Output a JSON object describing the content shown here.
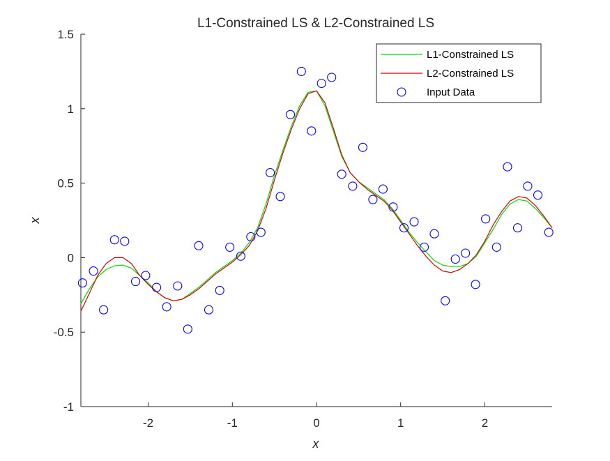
{
  "chart_data": {
    "type": "line",
    "title": "L1-Constrained LS & L2-Constrained LS",
    "xlabel": "x",
    "ylabel": "x",
    "xlim": [
      -2.8,
      2.8
    ],
    "ylim": [
      -1,
      1.5
    ],
    "xticks": [
      -2,
      -1,
      0,
      1,
      2
    ],
    "xtick_labels": [
      "-2",
      "-1",
      "0",
      "1",
      "2"
    ],
    "yticks": [
      -1,
      -0.5,
      0,
      0.5,
      1,
      1.5
    ],
    "ytick_labels": [
      "-1",
      "-0.5",
      "0",
      "0.5",
      "1",
      "1.5"
    ],
    "grid": false,
    "legend_position": "top-right",
    "series": [
      {
        "name": "L1-Constrained LS",
        "kind": "line",
        "color": "#00dd00",
        "x": [
          -2.8,
          -2.7,
          -2.6,
          -2.5,
          -2.4,
          -2.3,
          -2.2,
          -2.1,
          -2.0,
          -1.9,
          -1.8,
          -1.7,
          -1.6,
          -1.5,
          -1.4,
          -1.3,
          -1.2,
          -1.1,
          -1.0,
          -0.9,
          -0.8,
          -0.7,
          -0.6,
          -0.5,
          -0.4,
          -0.3,
          -0.2,
          -0.1,
          0.0,
          0.1,
          0.2,
          0.3,
          0.4,
          0.5,
          0.6,
          0.7,
          0.8,
          0.9,
          1.0,
          1.1,
          1.2,
          1.3,
          1.4,
          1.5,
          1.6,
          1.7,
          1.8,
          1.9,
          2.0,
          2.1,
          2.2,
          2.3,
          2.4,
          2.5,
          2.6,
          2.7,
          2.8
        ],
        "y": [
          -0.31,
          -0.21,
          -0.13,
          -0.08,
          -0.055,
          -0.05,
          -0.07,
          -0.12,
          -0.17,
          -0.23,
          -0.27,
          -0.29,
          -0.28,
          -0.24,
          -0.2,
          -0.15,
          -0.1,
          -0.06,
          -0.02,
          0.03,
          0.1,
          0.2,
          0.36,
          0.55,
          0.72,
          0.88,
          1.02,
          1.11,
          1.12,
          1.02,
          0.85,
          0.68,
          0.57,
          0.51,
          0.47,
          0.43,
          0.39,
          0.33,
          0.25,
          0.17,
          0.1,
          0.04,
          -0.02,
          -0.05,
          -0.06,
          -0.06,
          -0.04,
          0.01,
          0.1,
          0.19,
          0.29,
          0.36,
          0.39,
          0.38,
          0.33,
          0.27,
          0.2
        ]
      },
      {
        "name": "L2-Constrained LS",
        "kind": "line",
        "color": "#dd0000",
        "x": [
          -2.8,
          -2.7,
          -2.6,
          -2.5,
          -2.4,
          -2.3,
          -2.2,
          -2.1,
          -2.0,
          -1.9,
          -1.8,
          -1.7,
          -1.6,
          -1.5,
          -1.4,
          -1.3,
          -1.2,
          -1.1,
          -1.0,
          -0.9,
          -0.8,
          -0.7,
          -0.6,
          -0.5,
          -0.4,
          -0.3,
          -0.2,
          -0.1,
          0.0,
          0.1,
          0.2,
          0.3,
          0.4,
          0.5,
          0.6,
          0.7,
          0.8,
          0.9,
          1.0,
          1.1,
          1.2,
          1.3,
          1.4,
          1.5,
          1.6,
          1.7,
          1.8,
          1.9,
          2.0,
          2.1,
          2.2,
          2.3,
          2.4,
          2.5,
          2.6,
          2.7,
          2.8
        ],
        "y": [
          -0.36,
          -0.24,
          -0.12,
          -0.04,
          0.0,
          0.0,
          -0.04,
          -0.12,
          -0.18,
          -0.23,
          -0.27,
          -0.29,
          -0.28,
          -0.25,
          -0.21,
          -0.16,
          -0.11,
          -0.07,
          -0.03,
          0.02,
          0.08,
          0.18,
          0.33,
          0.52,
          0.7,
          0.86,
          1.0,
          1.1,
          1.12,
          1.04,
          0.87,
          0.69,
          0.57,
          0.51,
          0.46,
          0.42,
          0.38,
          0.32,
          0.24,
          0.16,
          0.08,
          0.01,
          -0.05,
          -0.09,
          -0.1,
          -0.08,
          -0.04,
          0.02,
          0.11,
          0.22,
          0.31,
          0.38,
          0.41,
          0.4,
          0.35,
          0.28,
          0.2
        ]
      },
      {
        "name": "Input Data",
        "kind": "scatter",
        "color": "#0000ff",
        "x": [
          -2.78,
          -2.65,
          -2.53,
          -2.4,
          -2.28,
          -2.15,
          -2.03,
          -1.9,
          -1.78,
          -1.65,
          -1.53,
          -1.4,
          -1.28,
          -1.15,
          -1.03,
          -0.9,
          -0.78,
          -0.66,
          -0.55,
          -0.43,
          -0.31,
          -0.18,
          -0.06,
          0.06,
          0.18,
          0.3,
          0.43,
          0.55,
          0.67,
          0.79,
          0.91,
          1.04,
          1.16,
          1.28,
          1.4,
          1.53,
          1.65,
          1.77,
          1.89,
          2.01,
          2.14,
          2.27,
          2.39,
          2.51,
          2.63,
          2.76
        ],
        "y": [
          -0.17,
          -0.09,
          -0.35,
          0.12,
          0.11,
          -0.16,
          -0.12,
          -0.2,
          -0.33,
          -0.19,
          -0.48,
          0.08,
          -0.35,
          -0.22,
          0.07,
          0.01,
          0.14,
          0.17,
          0.57,
          0.41,
          0.96,
          1.25,
          0.85,
          1.17,
          1.21,
          0.56,
          0.48,
          0.74,
          0.39,
          0.46,
          0.34,
          0.2,
          0.24,
          0.07,
          0.16,
          -0.29,
          -0.01,
          0.03,
          -0.18,
          0.26,
          0.07,
          0.61,
          0.2,
          0.48,
          0.42,
          0.17
        ]
      }
    ]
  }
}
